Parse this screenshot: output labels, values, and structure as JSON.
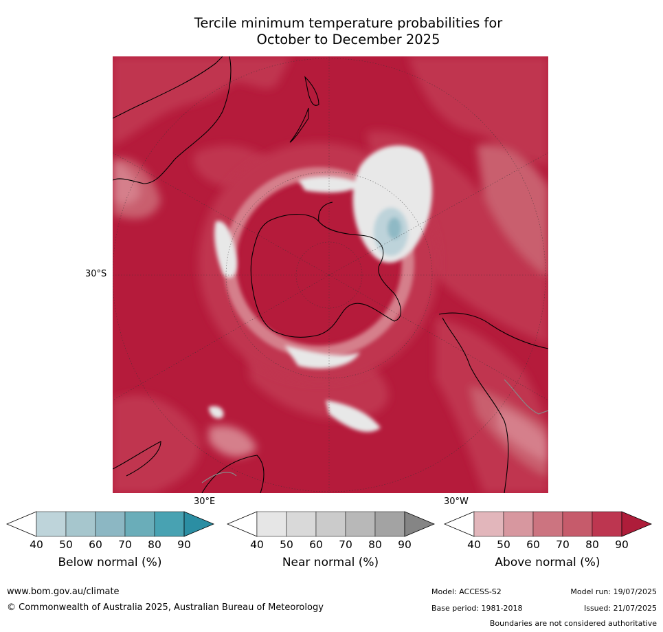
{
  "title_line1": "Tercile minimum temperature probabilities for",
  "title_line2": "October to December 2025",
  "map": {
    "projection": "south polar stereographic",
    "lat_label": "30°S",
    "lon_label_left": "30°E",
    "lon_label_right": "30°W",
    "colors": {
      "ocean_dominant": "#b51b3b",
      "above_80": "#c0354f",
      "above_70": "#c95e6e",
      "above_60": "#d57f8b",
      "above_50": "#e0a7ae",
      "near_40": "#e8e8e8",
      "below_40": "#bdd3da",
      "below_60": "#8fb9c5",
      "coastline": "#000000",
      "boundaries": "#888888"
    }
  },
  "colorbars": [
    {
      "name": "below",
      "label": "Below normal (%)",
      "ticks": [
        "40",
        "50",
        "60",
        "70",
        "80",
        "90"
      ],
      "colors": [
        "#ffffff",
        "#bed4da",
        "#a6c6cd",
        "#8cb7c3",
        "#6aadb9",
        "#48a2b2",
        "#2b8ea3"
      ]
    },
    {
      "name": "near",
      "label": "Near normal (%)",
      "ticks": [
        "40",
        "50",
        "60",
        "70",
        "80",
        "90"
      ],
      "colors": [
        "#ffffff",
        "#e6e6e6",
        "#d9d9d9",
        "#cbcbcb",
        "#b8b8b8",
        "#a3a3a3",
        "#858585"
      ]
    },
    {
      "name": "above",
      "label": "Above normal (%)",
      "ticks": [
        "40",
        "50",
        "60",
        "70",
        "80",
        "90"
      ],
      "colors": [
        "#ffffff",
        "#e2b6bb",
        "#d7979f",
        "#cc7480",
        "#c65b6b",
        "#bd3650",
        "#ae1d3a"
      ]
    }
  ],
  "footer": {
    "website": "www.bom.gov.au/climate",
    "copyright": "© Commonwealth of Australia 2025, Australian Bureau of Meteorology",
    "model": "Model: ACCESS-S2",
    "model_run": "Model run: 19/07/2025",
    "base_period": "Base period: 1981-2018",
    "issued": "Issued: 21/07/2025",
    "disclaimer": "Boundaries are not considered authoritative"
  }
}
